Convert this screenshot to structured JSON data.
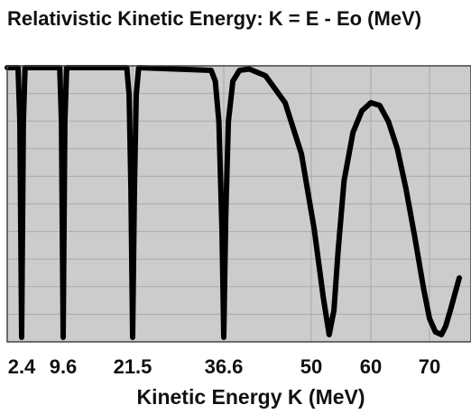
{
  "chart_data": {
    "type": "line",
    "title": "Relativistic Kinetic Energy: K = E - Eo (MeV)",
    "xlabel": "Kinetic Energy K (MeV)",
    "ylabel": "",
    "xlim": [
      0,
      75
    ],
    "ylim": [
      0,
      1
    ],
    "x_ticks": [
      {
        "value": 2.4,
        "label": "2.4"
      },
      {
        "value": 9.6,
        "label": "9.6"
      },
      {
        "value": 21.5,
        "label": "21.5"
      },
      {
        "value": 36.6,
        "label": "36.6"
      },
      {
        "value": 50,
        "label": "50"
      },
      {
        "value": 60,
        "label": "60"
      },
      {
        "value": 70,
        "label": "70"
      }
    ],
    "grid": true,
    "background_color": "#cccccc",
    "line_color": "#000000",
    "series": [
      {
        "x": [
          0,
          1.8,
          2.1,
          2.4,
          2.7,
          3.0,
          9.0,
          9.3,
          9.6,
          9.9,
          10.2,
          20.5,
          20.9,
          21.2,
          21.5,
          21.8,
          22.1,
          22.5,
          34.5,
          35.2,
          35.8,
          36.3,
          36.6,
          36.9,
          37.3,
          38.0,
          39.0,
          40.5,
          43.0,
          46.0,
          48.5,
          50.5,
          52.0,
          53.0,
          53.8,
          54.5,
          55.5,
          57.0,
          58.5,
          60.0,
          61.5,
          63.0,
          64.5,
          66.0,
          67.5,
          69.0,
          70.0,
          71.0,
          72.0,
          72.7,
          73.5,
          74.5,
          75.0
        ],
        "y": [
          1.0,
          1.0,
          0.8,
          0.0,
          0.8,
          1.0,
          1.0,
          0.8,
          0.0,
          0.8,
          1.0,
          1.0,
          0.9,
          0.55,
          0.0,
          0.55,
          0.9,
          1.0,
          0.99,
          0.95,
          0.8,
          0.4,
          0.0,
          0.45,
          0.8,
          0.95,
          0.99,
          0.995,
          0.97,
          0.87,
          0.68,
          0.4,
          0.15,
          0.01,
          0.1,
          0.32,
          0.58,
          0.76,
          0.84,
          0.87,
          0.86,
          0.8,
          0.7,
          0.55,
          0.37,
          0.18,
          0.07,
          0.02,
          0.01,
          0.04,
          0.1,
          0.18,
          0.22
        ]
      }
    ]
  }
}
